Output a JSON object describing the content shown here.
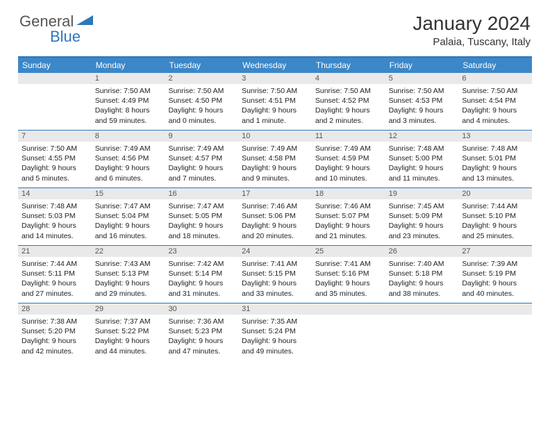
{
  "logo": {
    "general": "General",
    "blue": "Blue"
  },
  "title": "January 2024",
  "location": "Palaia, Tuscany, Italy",
  "colors": {
    "header_bg": "#3b87c8",
    "border": "#2f77bb",
    "daynum_bg": "#e9e9e9",
    "text": "#222222",
    "muted": "#555555"
  },
  "day_headers": [
    "Sunday",
    "Monday",
    "Tuesday",
    "Wednesday",
    "Thursday",
    "Friday",
    "Saturday"
  ],
  "weeks": [
    [
      null,
      {
        "n": "1",
        "sr": "7:50 AM",
        "ss": "4:49 PM",
        "dl": "8 hours and 59 minutes."
      },
      {
        "n": "2",
        "sr": "7:50 AM",
        "ss": "4:50 PM",
        "dl": "9 hours and 0 minutes."
      },
      {
        "n": "3",
        "sr": "7:50 AM",
        "ss": "4:51 PM",
        "dl": "9 hours and 1 minute."
      },
      {
        "n": "4",
        "sr": "7:50 AM",
        "ss": "4:52 PM",
        "dl": "9 hours and 2 minutes."
      },
      {
        "n": "5",
        "sr": "7:50 AM",
        "ss": "4:53 PM",
        "dl": "9 hours and 3 minutes."
      },
      {
        "n": "6",
        "sr": "7:50 AM",
        "ss": "4:54 PM",
        "dl": "9 hours and 4 minutes."
      }
    ],
    [
      {
        "n": "7",
        "sr": "7:50 AM",
        "ss": "4:55 PM",
        "dl": "9 hours and 5 minutes."
      },
      {
        "n": "8",
        "sr": "7:49 AM",
        "ss": "4:56 PM",
        "dl": "9 hours and 6 minutes."
      },
      {
        "n": "9",
        "sr": "7:49 AM",
        "ss": "4:57 PM",
        "dl": "9 hours and 7 minutes."
      },
      {
        "n": "10",
        "sr": "7:49 AM",
        "ss": "4:58 PM",
        "dl": "9 hours and 9 minutes."
      },
      {
        "n": "11",
        "sr": "7:49 AM",
        "ss": "4:59 PM",
        "dl": "9 hours and 10 minutes."
      },
      {
        "n": "12",
        "sr": "7:48 AM",
        "ss": "5:00 PM",
        "dl": "9 hours and 11 minutes."
      },
      {
        "n": "13",
        "sr": "7:48 AM",
        "ss": "5:01 PM",
        "dl": "9 hours and 13 minutes."
      }
    ],
    [
      {
        "n": "14",
        "sr": "7:48 AM",
        "ss": "5:03 PM",
        "dl": "9 hours and 14 minutes."
      },
      {
        "n": "15",
        "sr": "7:47 AM",
        "ss": "5:04 PM",
        "dl": "9 hours and 16 minutes."
      },
      {
        "n": "16",
        "sr": "7:47 AM",
        "ss": "5:05 PM",
        "dl": "9 hours and 18 minutes."
      },
      {
        "n": "17",
        "sr": "7:46 AM",
        "ss": "5:06 PM",
        "dl": "9 hours and 20 minutes."
      },
      {
        "n": "18",
        "sr": "7:46 AM",
        "ss": "5:07 PM",
        "dl": "9 hours and 21 minutes."
      },
      {
        "n": "19",
        "sr": "7:45 AM",
        "ss": "5:09 PM",
        "dl": "9 hours and 23 minutes."
      },
      {
        "n": "20",
        "sr": "7:44 AM",
        "ss": "5:10 PM",
        "dl": "9 hours and 25 minutes."
      }
    ],
    [
      {
        "n": "21",
        "sr": "7:44 AM",
        "ss": "5:11 PM",
        "dl": "9 hours and 27 minutes."
      },
      {
        "n": "22",
        "sr": "7:43 AM",
        "ss": "5:13 PM",
        "dl": "9 hours and 29 minutes."
      },
      {
        "n": "23",
        "sr": "7:42 AM",
        "ss": "5:14 PM",
        "dl": "9 hours and 31 minutes."
      },
      {
        "n": "24",
        "sr": "7:41 AM",
        "ss": "5:15 PM",
        "dl": "9 hours and 33 minutes."
      },
      {
        "n": "25",
        "sr": "7:41 AM",
        "ss": "5:16 PM",
        "dl": "9 hours and 35 minutes."
      },
      {
        "n": "26",
        "sr": "7:40 AM",
        "ss": "5:18 PM",
        "dl": "9 hours and 38 minutes."
      },
      {
        "n": "27",
        "sr": "7:39 AM",
        "ss": "5:19 PM",
        "dl": "9 hours and 40 minutes."
      }
    ],
    [
      {
        "n": "28",
        "sr": "7:38 AM",
        "ss": "5:20 PM",
        "dl": "9 hours and 42 minutes."
      },
      {
        "n": "29",
        "sr": "7:37 AM",
        "ss": "5:22 PM",
        "dl": "9 hours and 44 minutes."
      },
      {
        "n": "30",
        "sr": "7:36 AM",
        "ss": "5:23 PM",
        "dl": "9 hours and 47 minutes."
      },
      {
        "n": "31",
        "sr": "7:35 AM",
        "ss": "5:24 PM",
        "dl": "9 hours and 49 minutes."
      },
      null,
      null,
      null
    ]
  ],
  "labels": {
    "sunrise": "Sunrise:",
    "sunset": "Sunset:",
    "daylight": "Daylight:"
  }
}
